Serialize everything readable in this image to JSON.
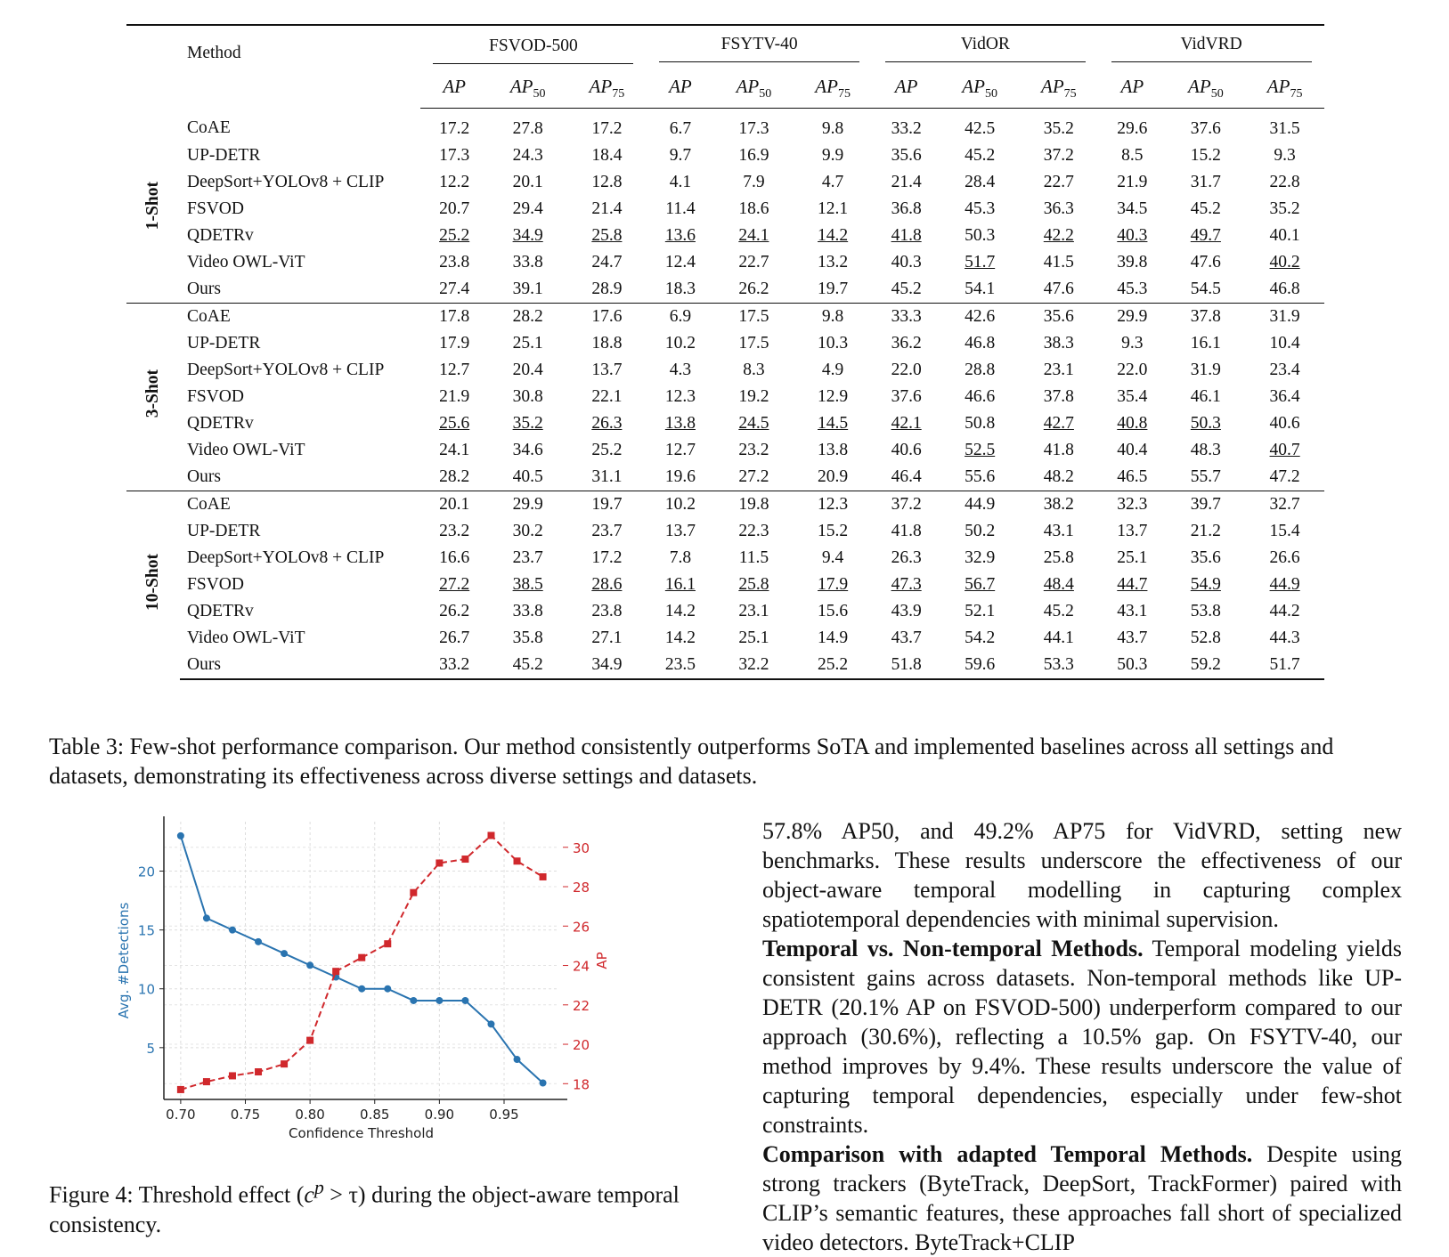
{
  "table": {
    "method_header": "Method",
    "datasets": [
      "FSVOD-500",
      "FSYTV-40",
      "VidOR",
      "VidVRD"
    ],
    "metrics": [
      "AP",
      "AP",
      "AP"
    ],
    "metric_subs": [
      "",
      "50",
      "75"
    ],
    "groups": [
      {
        "label": "1-Shot",
        "rows": [
          {
            "method": "CoAE",
            "values": [
              "17.2",
              "27.8",
              "17.2",
              "6.7",
              "17.3",
              "9.8",
              "33.2",
              "42.5",
              "35.2",
              "29.6",
              "37.6",
              "31.5"
            ],
            "underline": []
          },
          {
            "method": "UP-DETR",
            "values": [
              "17.3",
              "24.3",
              "18.4",
              "9.7",
              "16.9",
              "9.9",
              "35.6",
              "45.2",
              "37.2",
              "8.5",
              "15.2",
              "9.3"
            ],
            "underline": []
          },
          {
            "method": "DeepSort+YOLOv8 + CLIP",
            "values": [
              "12.2",
              "20.1",
              "12.8",
              "4.1",
              "7.9",
              "4.7",
              "21.4",
              "28.4",
              "22.7",
              "21.9",
              "31.7",
              "22.8"
            ],
            "underline": []
          },
          {
            "method": "FSVOD",
            "values": [
              "20.7",
              "29.4",
              "21.4",
              "11.4",
              "18.6",
              "12.1",
              "36.8",
              "45.3",
              "36.3",
              "34.5",
              "45.2",
              "35.2"
            ],
            "underline": []
          },
          {
            "method": "QDETRv",
            "values": [
              "25.2",
              "34.9",
              "25.8",
              "13.6",
              "24.1",
              "14.2",
              "41.8",
              "50.3",
              "42.2",
              "40.3",
              "49.7",
              "40.1"
            ],
            "underline": [
              0,
              1,
              2,
              3,
              4,
              5,
              6,
              8,
              9,
              10
            ]
          },
          {
            "method": "Video OWL-ViT",
            "values": [
              "23.8",
              "33.8",
              "24.7",
              "12.4",
              "22.7",
              "13.2",
              "40.3",
              "51.7",
              "41.5",
              "39.8",
              "47.6",
              "40.2"
            ],
            "underline": [
              7,
              11
            ]
          },
          {
            "method": "Ours",
            "values": [
              "27.4",
              "39.1",
              "28.9",
              "18.3",
              "26.2",
              "19.7",
              "45.2",
              "54.1",
              "47.6",
              "45.3",
              "54.5",
              "46.8"
            ],
            "underline": [],
            "bold": true
          }
        ]
      },
      {
        "label": "3-Shot",
        "rows": [
          {
            "method": "CoAE",
            "values": [
              "17.8",
              "28.2",
              "17.6",
              "6.9",
              "17.5",
              "9.8",
              "33.3",
              "42.6",
              "35.6",
              "29.9",
              "37.8",
              "31.9"
            ],
            "underline": []
          },
          {
            "method": "UP-DETR",
            "values": [
              "17.9",
              "25.1",
              "18.8",
              "10.2",
              "17.5",
              "10.3",
              "36.2",
              "46.8",
              "38.3",
              "9.3",
              "16.1",
              "10.4"
            ],
            "underline": []
          },
          {
            "method": "DeepSort+YOLOv8 + CLIP",
            "values": [
              "12.7",
              "20.4",
              "13.7",
              "4.3",
              "8.3",
              "4.9",
              "22.0",
              "28.8",
              "23.1",
              "22.0",
              "31.9",
              "23.4"
            ],
            "underline": []
          },
          {
            "method": "FSVOD",
            "values": [
              "21.9",
              "30.8",
              "22.1",
              "12.3",
              "19.2",
              "12.9",
              "37.6",
              "46.6",
              "37.8",
              "35.4",
              "46.1",
              "36.4"
            ],
            "underline": []
          },
          {
            "method": "QDETRv",
            "values": [
              "25.6",
              "35.2",
              "26.3",
              "13.8",
              "24.5",
              "14.5",
              "42.1",
              "50.8",
              "42.7",
              "40.8",
              "50.3",
              "40.6"
            ],
            "underline": [
              0,
              1,
              2,
              3,
              4,
              5,
              6,
              8,
              9,
              10
            ]
          },
          {
            "method": "Video OWL-ViT",
            "values": [
              "24.1",
              "34.6",
              "25.2",
              "12.7",
              "23.2",
              "13.8",
              "40.6",
              "52.5",
              "41.8",
              "40.4",
              "48.3",
              "40.7"
            ],
            "underline": [
              7,
              11
            ]
          },
          {
            "method": "Ours",
            "values": [
              "28.2",
              "40.5",
              "31.1",
              "19.6",
              "27.2",
              "20.9",
              "46.4",
              "55.6",
              "48.2",
              "46.5",
              "55.7",
              "47.2"
            ],
            "underline": [],
            "bold": true
          }
        ]
      },
      {
        "label": "10-Shot",
        "rows": [
          {
            "method": "CoAE",
            "values": [
              "20.1",
              "29.9",
              "19.7",
              "10.2",
              "19.8",
              "12.3",
              "37.2",
              "44.9",
              "38.2",
              "32.3",
              "39.7",
              "32.7"
            ],
            "underline": []
          },
          {
            "method": "UP-DETR",
            "values": [
              "23.2",
              "30.2",
              "23.7",
              "13.7",
              "22.3",
              "15.2",
              "41.8",
              "50.2",
              "43.1",
              "13.7",
              "21.2",
              "15.4"
            ],
            "underline": []
          },
          {
            "method": "DeepSort+YOLOv8 + CLIP",
            "values": [
              "16.6",
              "23.7",
              "17.2",
              "7.8",
              "11.5",
              "9.4",
              "26.3",
              "32.9",
              "25.8",
              "25.1",
              "35.6",
              "26.6"
            ],
            "underline": []
          },
          {
            "method": "FSVOD",
            "values": [
              "27.2",
              "38.5",
              "28.6",
              "16.1",
              "25.8",
              "17.9",
              "47.3",
              "56.7",
              "48.4",
              "44.7",
              "54.9",
              "44.9"
            ],
            "underline": [
              0,
              1,
              2,
              3,
              4,
              5,
              6,
              7,
              8,
              9,
              10,
              11
            ]
          },
          {
            "method": "QDETRv",
            "values": [
              "26.2",
              "33.8",
              "23.8",
              "14.2",
              "23.1",
              "15.6",
              "43.9",
              "52.1",
              "45.2",
              "43.1",
              "53.8",
              "44.2"
            ],
            "underline": []
          },
          {
            "method": "Video OWL-ViT",
            "values": [
              "26.7",
              "35.8",
              "27.1",
              "14.2",
              "25.1",
              "14.9",
              "43.7",
              "54.2",
              "44.1",
              "43.7",
              "52.8",
              "44.3"
            ],
            "underline": []
          },
          {
            "method": "Ours",
            "values": [
              "33.2",
              "45.2",
              "34.9",
              "23.5",
              "32.2",
              "25.2",
              "51.8",
              "59.6",
              "53.3",
              "50.3",
              "59.2",
              "51.7"
            ],
            "underline": [],
            "bold": true
          }
        ]
      }
    ]
  },
  "caption": "Table 3: Few-shot performance comparison. Our method consistently outperforms SoTA and implemented baselines across all settings and datasets, demonstrating its effectiveness across diverse settings and datasets.",
  "figure_caption": {
    "prefix": "Figure 4:  Threshold effect (",
    "math": "c",
    "sup": "p",
    "math2": " > τ",
    "suffix": ") during the object-aware temporal consistency."
  },
  "chart_data": {
    "type": "line",
    "xlabel": "Confidence Threshold",
    "ylabel": "Avg. #Detections",
    "y2label": "AP",
    "x": [
      0.7,
      0.72,
      0.74,
      0.76,
      0.78,
      0.8,
      0.82,
      0.84,
      0.86,
      0.88,
      0.9,
      0.92,
      0.94,
      0.96,
      0.98
    ],
    "xticks": [
      "0.70",
      "0.75",
      "0.80",
      "0.85",
      "0.90",
      "0.95"
    ],
    "yticks": [
      "5",
      "10",
      "15",
      "20"
    ],
    "y2ticks": [
      "18",
      "20",
      "22",
      "24",
      "26",
      "28",
      "30"
    ],
    "xlim": [
      0.687,
      0.992
    ],
    "ylim": [
      0.6,
      24.2
    ],
    "y2lim": [
      17.2,
      31.3
    ],
    "grid": true,
    "series": [
      {
        "name": "Avg. #Detections",
        "axis": "left",
        "color": "#2a74b0",
        "values": [
          23,
          16,
          15,
          14,
          13,
          12,
          11,
          10,
          10,
          9,
          9,
          9,
          7,
          4,
          2
        ]
      },
      {
        "name": "AP",
        "axis": "right",
        "color": "#d0282c",
        "values": [
          17.7,
          18.1,
          18.4,
          18.6,
          19.0,
          20.2,
          23.7,
          24.4,
          25.1,
          27.7,
          29.2,
          29.4,
          30.6,
          29.3,
          28.5
        ]
      }
    ]
  },
  "body": {
    "p1": "57.8% AP50, and 49.2% AP75 for VidVRD, setting new benchmarks. These results underscore the effectiveness of our object-aware temporal modelling in capturing complex spatiotemporal dependencies with minimal supervision.",
    "p2_head": "Temporal vs. Non-temporal Methods.",
    "p2": " Temporal modeling yields consistent gains across datasets. Non-temporal methods like UP-DETR (20.1% AP on FSVOD-500) underperform compared to our approach (30.6%), reflecting a 10.5% gap. On FSYTV-40, our method improves by 9.4%. These results underscore the value of capturing temporal dependencies, especially under few-shot constraints.",
    "p3_head": "Comparison with adapted Temporal Methods.",
    "p3": " Despite using strong trackers (ByteTrack, DeepSort, TrackFormer) paired with CLIP’s semantic features, these approaches fall short of specialized video detectors. ByteTrack+CLIP"
  }
}
